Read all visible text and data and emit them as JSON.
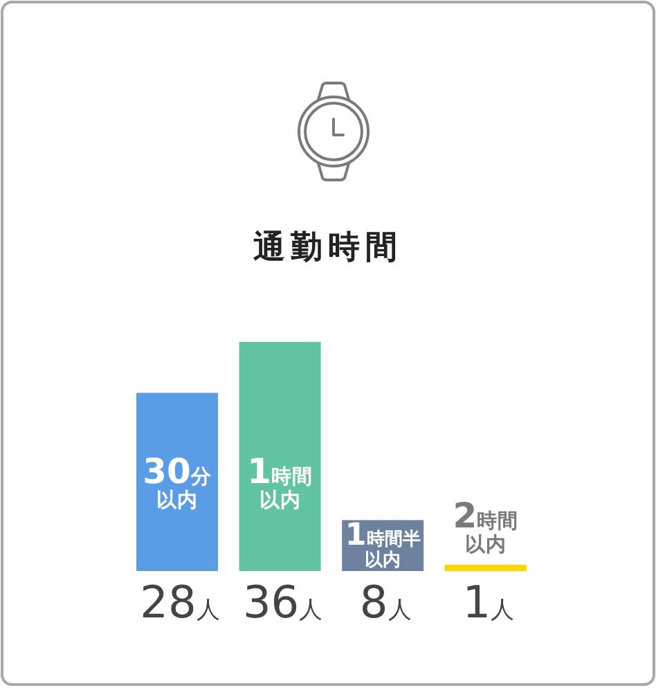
{
  "chart_data": {
    "type": "bar",
    "title": "通勤時間",
    "categories": [
      "30分以内",
      "1時間以内",
      "1時間半以内",
      "2時間以内"
    ],
    "values": [
      28,
      36,
      8,
      1
    ],
    "colors": [
      "#5b9ce6",
      "#62c3a2",
      "#6e82a0",
      "#ffd400"
    ],
    "value_labels": [
      "28人",
      "36人",
      "8人",
      "1人"
    ]
  }
}
